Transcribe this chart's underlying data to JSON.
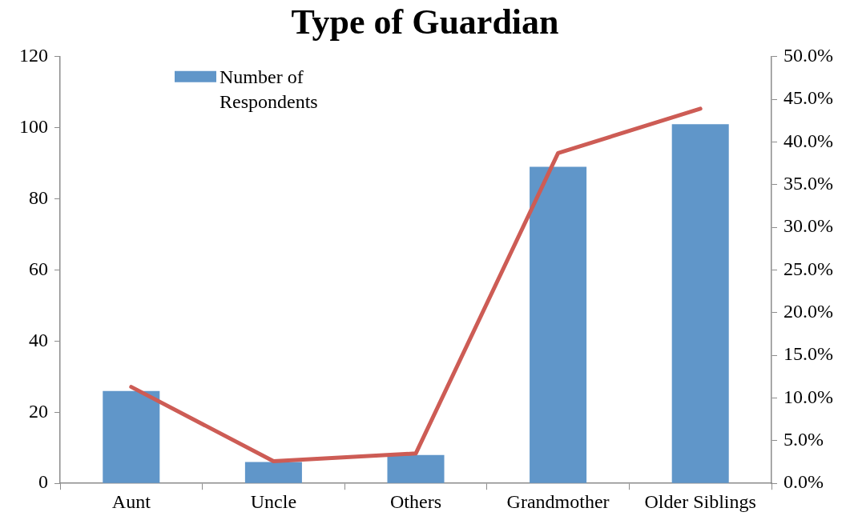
{
  "chart_data": {
    "type": "bar",
    "title": "Type of Guardian",
    "categories": [
      "Aunt",
      "Uncle",
      "Others",
      "Grandmother",
      "Older Siblings"
    ],
    "series": [
      {
        "name": "Number of Respondents",
        "color": "#6096c9",
        "values": [
          26,
          6,
          8,
          89,
          101
        ]
      },
      {
        "type": "line",
        "axis": "y2",
        "color": "#cd5c55",
        "values": [
          11.3,
          2.6,
          3.5,
          38.7,
          43.9
        ]
      }
    ],
    "ylim": [
      0,
      120
    ],
    "yticks": [
      0,
      20,
      40,
      60,
      80,
      100,
      120
    ],
    "y2lim": [
      0,
      50
    ],
    "y2ticks": [
      {
        "value": 0,
        "label": "0.0%"
      },
      {
        "value": 5,
        "label": "5.0%"
      },
      {
        "value": 10,
        "label": "10.0%"
      },
      {
        "value": 15,
        "label": "15.0%"
      },
      {
        "value": 20,
        "label": "20.0%"
      },
      {
        "value": 25,
        "label": "25.0%"
      },
      {
        "value": 30,
        "label": "30.0%"
      },
      {
        "value": 35,
        "label": "35.0%"
      },
      {
        "value": 40,
        "label": "40.0%"
      },
      {
        "value": 45,
        "label": "45.0%"
      },
      {
        "value": 50,
        "label": "50.0%"
      }
    ],
    "legend": "top left",
    "marker": "none",
    "line_style": "solid"
  }
}
